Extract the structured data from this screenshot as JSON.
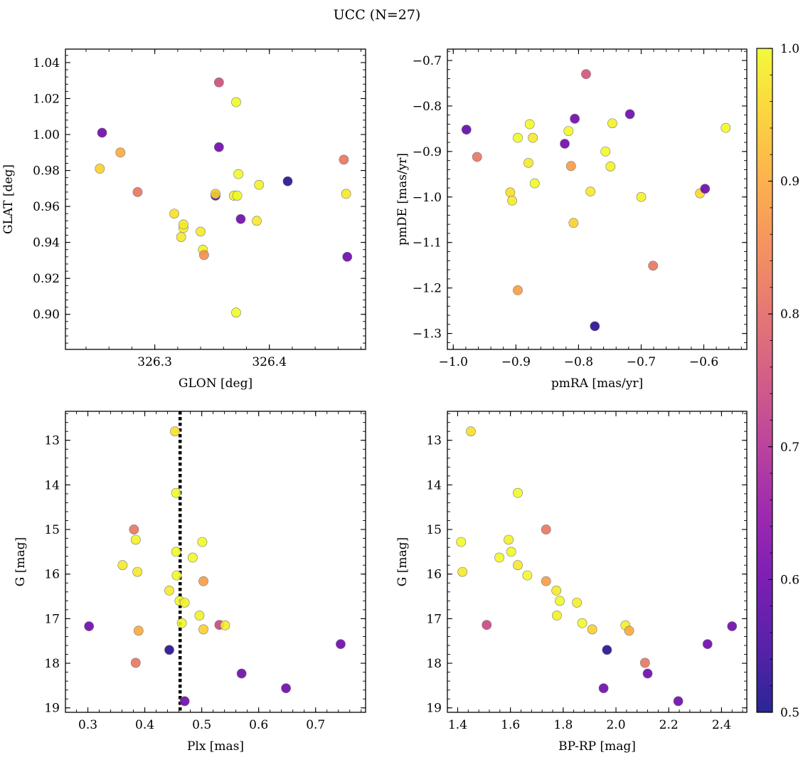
{
  "figure": {
    "title": "UCC (N=27)"
  },
  "colorbar": {
    "colormap": "plasma",
    "min": 0.5,
    "max": 1.0,
    "ticks": [
      "0.5",
      "0.6",
      "0.7",
      "0.8",
      "0.9",
      "1.0"
    ]
  },
  "chart_data": [
    {
      "type": "scatter",
      "xlabel": "GLON [deg]",
      "ylabel": "GLAT [deg]",
      "xlim": [
        326.222,
        326.484
      ],
      "ylim": [
        0.8805,
        1.0475
      ],
      "x_ticks": [
        326.3,
        326.4
      ],
      "x_ticklabels": [
        "326.3",
        "326.4"
      ],
      "y_ticks": [
        0.9,
        0.92,
        0.94,
        0.96,
        0.98,
        1.0,
        1.02,
        1.04
      ],
      "y_ticklabels": [
        "0.90",
        "0.92",
        "0.94",
        "0.96",
        "0.98",
        "1.00",
        "1.02",
        "1.04"
      ],
      "points": [
        {
          "x": 326.252,
          "y": 0.981,
          "c": 0.95
        },
        {
          "x": 326.254,
          "y": 1.001,
          "c": 0.6
        },
        {
          "x": 326.27,
          "y": 0.99,
          "c": 0.9
        },
        {
          "x": 326.285,
          "y": 0.968,
          "c": 0.82
        },
        {
          "x": 326.317,
          "y": 0.956,
          "c": 0.97
        },
        {
          "x": 326.323,
          "y": 0.943,
          "c": 0.98
        },
        {
          "x": 326.325,
          "y": 0.948,
          "c": 0.99
        },
        {
          "x": 326.325,
          "y": 0.95,
          "c": 0.98
        },
        {
          "x": 326.34,
          "y": 0.946,
          "c": 0.98
        },
        {
          "x": 326.342,
          "y": 0.936,
          "c": 0.99
        },
        {
          "x": 326.343,
          "y": 0.933,
          "c": 0.86
        },
        {
          "x": 326.353,
          "y": 0.966,
          "c": 0.58
        },
        {
          "x": 326.353,
          "y": 0.967,
          "c": 0.96
        },
        {
          "x": 326.356,
          "y": 1.029,
          "c": 0.75
        },
        {
          "x": 326.356,
          "y": 0.993,
          "c": 0.6
        },
        {
          "x": 326.369,
          "y": 0.966,
          "c": 0.99
        },
        {
          "x": 326.371,
          "y": 0.901,
          "c": 1.0
        },
        {
          "x": 326.371,
          "y": 1.018,
          "c": 1.0
        },
        {
          "x": 326.372,
          "y": 0.966,
          "c": 1.0
        },
        {
          "x": 326.373,
          "y": 0.978,
          "c": 1.0
        },
        {
          "x": 326.375,
          "y": 0.953,
          "c": 0.6
        },
        {
          "x": 326.389,
          "y": 0.952,
          "c": 0.98
        },
        {
          "x": 326.391,
          "y": 0.972,
          "c": 0.99
        },
        {
          "x": 326.416,
          "y": 0.974,
          "c": 0.52
        },
        {
          "x": 326.465,
          "y": 0.986,
          "c": 0.82
        },
        {
          "x": 326.467,
          "y": 0.967,
          "c": 0.98
        },
        {
          "x": 326.468,
          "y": 0.932,
          "c": 0.6
        }
      ]
    },
    {
      "type": "scatter",
      "xlabel": "pmRA [mas/yr]",
      "ylabel": "pmDE [mas/yr]",
      "xlim": [
        -1.0094,
        -0.5313
      ],
      "ylim": [
        -1.335,
        -0.675
      ],
      "x_ticks": [
        -1.0,
        -0.9,
        -0.8,
        -0.7,
        -0.6
      ],
      "x_ticklabels": [
        "−1.0",
        "−0.9",
        "−0.8",
        "−0.7",
        "−0.6"
      ],
      "y_ticks": [
        -1.3,
        -1.2,
        -1.1,
        -1.0,
        -0.9,
        -0.8,
        -0.7
      ],
      "y_ticklabels": [
        "−1.3",
        "−1.2",
        "−1.1",
        "−1.0",
        "−0.9",
        "−0.8",
        "−0.7"
      ],
      "points": [
        {
          "x": -0.979,
          "y": -0.852,
          "c": 0.58
        },
        {
          "x": -0.962,
          "y": -0.912,
          "c": 0.82
        },
        {
          "x": -0.909,
          "y": -0.99,
          "c": 0.97
        },
        {
          "x": -0.906,
          "y": -1.008,
          "c": 0.98
        },
        {
          "x": -0.897,
          "y": -0.87,
          "c": 1.0
        },
        {
          "x": -0.897,
          "y": -1.205,
          "c": 0.88
        },
        {
          "x": -0.88,
          "y": -0.925,
          "c": 0.98
        },
        {
          "x": -0.878,
          "y": -0.84,
          "c": 1.0
        },
        {
          "x": -0.873,
          "y": -0.87,
          "c": 0.98
        },
        {
          "x": -0.87,
          "y": -0.97,
          "c": 1.0
        },
        {
          "x": -0.822,
          "y": -0.883,
          "c": 0.6
        },
        {
          "x": -0.816,
          "y": -0.855,
          "c": 1.0
        },
        {
          "x": -0.812,
          "y": -0.932,
          "c": 0.88
        },
        {
          "x": -0.808,
          "y": -1.057,
          "c": 0.95
        },
        {
          "x": -0.806,
          "y": -0.828,
          "c": 0.6
        },
        {
          "x": -0.788,
          "y": -0.73,
          "c": 0.76
        },
        {
          "x": -0.781,
          "y": -0.988,
          "c": 0.98
        },
        {
          "x": -0.774,
          "y": -1.284,
          "c": 0.52
        },
        {
          "x": -0.757,
          "y": -0.9,
          "c": 1.0
        },
        {
          "x": -0.749,
          "y": -0.933,
          "c": 0.99
        },
        {
          "x": -0.746,
          "y": -0.838,
          "c": 0.99
        },
        {
          "x": -0.718,
          "y": -0.818,
          "c": 0.6
        },
        {
          "x": -0.7,
          "y": -1.0,
          "c": 0.99
        },
        {
          "x": -0.681,
          "y": -1.151,
          "c": 0.82
        },
        {
          "x": -0.606,
          "y": -0.992,
          "c": 0.96
        },
        {
          "x": -0.598,
          "y": -0.982,
          "c": 0.6
        },
        {
          "x": -0.565,
          "y": -0.848,
          "c": 1.0
        }
      ]
    },
    {
      "type": "scatter",
      "xlabel": "Plx [mas]",
      "ylabel": "G [mag]",
      "xlim": [
        0.2606,
        0.7878
      ],
      "ylim": [
        19.1,
        12.35
      ],
      "inverted_y": true,
      "x_ticks": [
        0.3,
        0.4,
        0.5,
        0.6,
        0.7
      ],
      "x_ticklabels": [
        "0.3",
        "0.4",
        "0.5",
        "0.6",
        "0.7"
      ],
      "y_ticks": [
        13,
        14,
        15,
        16,
        17,
        18,
        19
      ],
      "y_ticklabels": [
        "13",
        "14",
        "15",
        "16",
        "17",
        "18",
        "19"
      ],
      "vline": {
        "x": 0.462,
        "style": "dotted"
      },
      "points": [
        {
          "x": 0.302,
          "y": 17.17,
          "c": 0.6
        },
        {
          "x": 0.361,
          "y": 15.8,
          "c": 0.98
        },
        {
          "x": 0.381,
          "y": 15.0,
          "c": 0.82
        },
        {
          "x": 0.384,
          "y": 15.23,
          "c": 0.99
        },
        {
          "x": 0.384,
          "y": 17.99,
          "c": 0.82
        },
        {
          "x": 0.387,
          "y": 15.95,
          "c": 0.98
        },
        {
          "x": 0.389,
          "y": 17.27,
          "c": 0.9
        },
        {
          "x": 0.443,
          "y": 16.37,
          "c": 0.98
        },
        {
          "x": 0.443,
          "y": 17.7,
          "c": 0.52
        },
        {
          "x": 0.453,
          "y": 12.8,
          "c": 0.97
        },
        {
          "x": 0.455,
          "y": 14.18,
          "c": 1.0
        },
        {
          "x": 0.455,
          "y": 15.5,
          "c": 1.0
        },
        {
          "x": 0.456,
          "y": 16.03,
          "c": 1.0
        },
        {
          "x": 0.461,
          "y": 16.6,
          "c": 1.0
        },
        {
          "x": 0.465,
          "y": 17.1,
          "c": 1.0
        },
        {
          "x": 0.47,
          "y": 16.64,
          "c": 0.99
        },
        {
          "x": 0.47,
          "y": 18.85,
          "c": 0.6
        },
        {
          "x": 0.484,
          "y": 15.63,
          "c": 1.0
        },
        {
          "x": 0.496,
          "y": 16.93,
          "c": 0.99
        },
        {
          "x": 0.501,
          "y": 15.28,
          "c": 1.0
        },
        {
          "x": 0.503,
          "y": 16.16,
          "c": 0.88
        },
        {
          "x": 0.503,
          "y": 17.24,
          "c": 0.95
        },
        {
          "x": 0.531,
          "y": 17.14,
          "c": 0.74
        },
        {
          "x": 0.541,
          "y": 17.15,
          "c": 0.99
        },
        {
          "x": 0.57,
          "y": 18.23,
          "c": 0.6
        },
        {
          "x": 0.648,
          "y": 18.56,
          "c": 0.6
        },
        {
          "x": 0.744,
          "y": 17.57,
          "c": 0.6
        }
      ]
    },
    {
      "type": "scatter",
      "xlabel": "BP-RP [mag]",
      "ylabel": "G [mag]",
      "xlim": [
        1.361,
        2.496
      ],
      "ylim": [
        19.1,
        12.35
      ],
      "inverted_y": true,
      "x_ticks": [
        1.4,
        1.6,
        1.8,
        2.0,
        2.2,
        2.4
      ],
      "x_ticklabels": [
        "1.4",
        "1.6",
        "1.8",
        "2.0",
        "2.2",
        "2.4"
      ],
      "y_ticks": [
        13,
        14,
        15,
        16,
        17,
        18,
        19
      ],
      "y_ticklabels": [
        "13",
        "14",
        "15",
        "16",
        "17",
        "18",
        "19"
      ],
      "points": [
        {
          "x": 1.413,
          "y": 15.28,
          "c": 1.0
        },
        {
          "x": 1.418,
          "y": 15.95,
          "c": 0.98
        },
        {
          "x": 1.45,
          "y": 12.8,
          "c": 0.97
        },
        {
          "x": 1.51,
          "y": 17.14,
          "c": 0.74
        },
        {
          "x": 1.558,
          "y": 15.63,
          "c": 1.0
        },
        {
          "x": 1.593,
          "y": 15.23,
          "c": 0.99
        },
        {
          "x": 1.603,
          "y": 15.5,
          "c": 1.0
        },
        {
          "x": 1.628,
          "y": 14.18,
          "c": 1.0
        },
        {
          "x": 1.628,
          "y": 15.8,
          "c": 0.98
        },
        {
          "x": 1.664,
          "y": 16.03,
          "c": 1.0
        },
        {
          "x": 1.735,
          "y": 15.0,
          "c": 0.82
        },
        {
          "x": 1.735,
          "y": 16.16,
          "c": 0.88
        },
        {
          "x": 1.774,
          "y": 16.37,
          "c": 0.98
        },
        {
          "x": 1.776,
          "y": 16.93,
          "c": 0.99
        },
        {
          "x": 1.787,
          "y": 16.6,
          "c": 1.0
        },
        {
          "x": 1.852,
          "y": 16.64,
          "c": 0.99
        },
        {
          "x": 1.872,
          "y": 17.1,
          "c": 1.0
        },
        {
          "x": 1.91,
          "y": 17.24,
          "c": 0.95
        },
        {
          "x": 1.953,
          "y": 18.56,
          "c": 0.6
        },
        {
          "x": 1.966,
          "y": 17.7,
          "c": 0.52
        },
        {
          "x": 2.036,
          "y": 17.15,
          "c": 0.99
        },
        {
          "x": 2.05,
          "y": 17.27,
          "c": 0.9
        },
        {
          "x": 2.11,
          "y": 17.99,
          "c": 0.82
        },
        {
          "x": 2.12,
          "y": 18.23,
          "c": 0.6
        },
        {
          "x": 2.236,
          "y": 18.85,
          "c": 0.6
        },
        {
          "x": 2.347,
          "y": 17.57,
          "c": 0.6
        },
        {
          "x": 2.44,
          "y": 17.17,
          "c": 0.6
        }
      ]
    }
  ]
}
